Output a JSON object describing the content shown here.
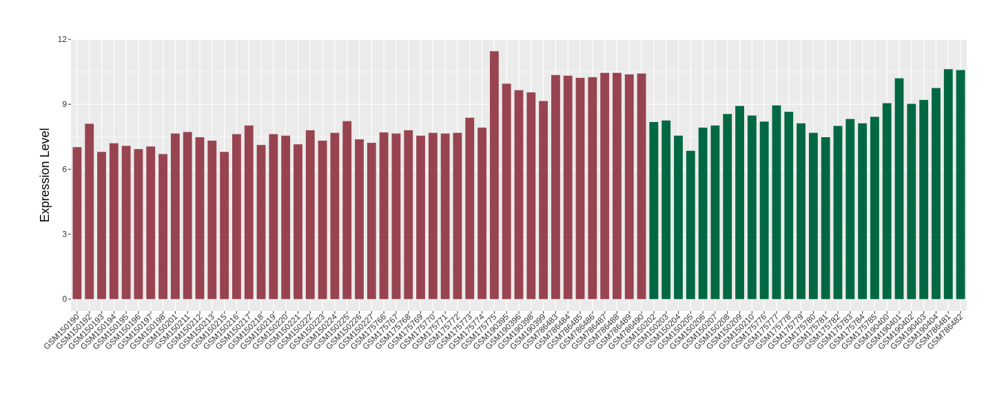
{
  "chart_data": {
    "type": "bar",
    "title": "",
    "xlabel": "",
    "ylabel": "Expression Level",
    "ylim": [
      -0.55,
      12
    ],
    "yticks": [
      0,
      3,
      6,
      9,
      12
    ],
    "grid": true,
    "legend": "none",
    "panel_background": "#ebebeb",
    "grid_color": "#ffffff",
    "categories": [
      "GSM150190",
      "GSM150192",
      "GSM150193",
      "GSM150194",
      "GSM150195",
      "GSM150196",
      "GSM150197",
      "GSM150198",
      "GSM150201",
      "GSM150211",
      "GSM150212",
      "GSM150213",
      "GSM150215",
      "GSM150216",
      "GSM150217",
      "GSM150218",
      "GSM150219",
      "GSM150220",
      "GSM150221",
      "GSM150222",
      "GSM150223",
      "GSM150224",
      "GSM150225",
      "GSM150226",
      "GSM150227",
      "GSM175766",
      "GSM175767",
      "GSM175768",
      "GSM175769",
      "GSM175770",
      "GSM175771",
      "GSM175772",
      "GSM175773",
      "GSM175774",
      "GSM175775",
      "GSM190395",
      "GSM190396",
      "GSM190398",
      "GSM190399",
      "GSM786483",
      "GSM786484",
      "GSM786485",
      "GSM786486",
      "GSM786487",
      "GSM786488",
      "GSM786489",
      "GSM786490",
      "GSM150202",
      "GSM150203",
      "GSM150204",
      "GSM150205",
      "GSM150206",
      "GSM150207",
      "GSM150208",
      "GSM150209",
      "GSM150210",
      "GSM175776",
      "GSM175777",
      "GSM175778",
      "GSM175779",
      "GSM175780",
      "GSM175781",
      "GSM175782",
      "GSM175783",
      "GSM175784",
      "GSM175785",
      "GSM190400",
      "GSM190401",
      "GSM190402",
      "GSM190403",
      "GSM190404",
      "GSM786481",
      "GSM786482"
    ],
    "values": [
      7.02,
      8.1,
      6.8,
      7.2,
      7.08,
      6.93,
      7.05,
      6.7,
      7.65,
      7.72,
      7.48,
      7.32,
      6.8,
      7.62,
      8.02,
      7.12,
      7.62,
      7.55,
      7.15,
      7.8,
      7.32,
      7.68,
      8.22,
      7.38,
      7.22,
      7.7,
      7.65,
      7.8,
      7.55,
      7.68,
      7.65,
      7.68,
      8.38,
      7.92,
      11.45,
      9.95,
      9.65,
      9.55,
      9.15,
      10.35,
      10.32,
      10.22,
      10.25,
      10.45,
      10.45,
      10.38,
      10.42,
      8.18,
      8.25,
      7.55,
      6.85,
      7.92,
      8.02,
      8.55,
      8.92,
      8.48,
      8.2,
      8.95,
      8.65,
      8.12,
      7.68,
      7.48,
      8.0,
      8.32,
      8.12,
      8.42,
      9.05,
      10.2,
      9.02,
      9.2,
      9.75,
      10.62,
      10.58
    ],
    "colors": [
      "#984450",
      "#984450",
      "#984450",
      "#984450",
      "#984450",
      "#984450",
      "#984450",
      "#984450",
      "#984450",
      "#984450",
      "#984450",
      "#984450",
      "#984450",
      "#984450",
      "#984450",
      "#984450",
      "#984450",
      "#984450",
      "#984450",
      "#984450",
      "#984450",
      "#984450",
      "#984450",
      "#984450",
      "#984450",
      "#984450",
      "#984450",
      "#984450",
      "#984450",
      "#984450",
      "#984450",
      "#984450",
      "#984450",
      "#984450",
      "#984450",
      "#984450",
      "#984450",
      "#984450",
      "#984450",
      "#984450",
      "#984450",
      "#984450",
      "#984450",
      "#984450",
      "#984450",
      "#984450",
      "#984450",
      "#026844",
      "#026844",
      "#026844",
      "#026844",
      "#026844",
      "#026844",
      "#026844",
      "#026844",
      "#026844",
      "#026844",
      "#026844",
      "#026844",
      "#026844",
      "#026844",
      "#026844",
      "#026844",
      "#026844",
      "#026844",
      "#026844",
      "#026844",
      "#026844",
      "#026844",
      "#026844",
      "#026844",
      "#026844",
      "#026844"
    ]
  }
}
